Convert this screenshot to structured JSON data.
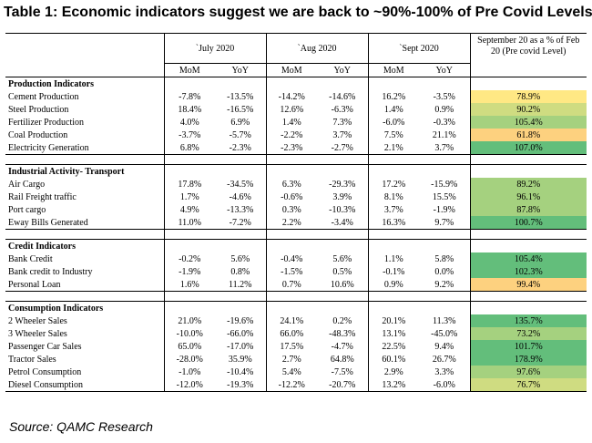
{
  "title": "Table 1: Economic indicators suggest we are back to ~90%-100% of Pre Covid Levels",
  "source": "Source: QAMC Research",
  "header": {
    "periods": [
      "`July 2020",
      "`Aug 2020",
      "`Sept 2020"
    ],
    "sub": [
      "MoM",
      "YoY"
    ],
    "last_col": "September 20 as a % of Feb 20 (Pre covid Level)"
  },
  "colors": {
    "green": "#63be7b",
    "light_green": "#a5d17f",
    "yellow_green": "#cfdc81",
    "yellow": "#ffe884",
    "orange": "#fdd17f"
  },
  "sections": [
    {
      "name": "Production Indicators",
      "rows": [
        {
          "label": "Cement Production",
          "values": [
            "-7.8%",
            "-13.5%",
            "-14.2%",
            "-14.6%",
            "16.2%",
            "-3.5%"
          ],
          "pct": "78.9%",
          "color": "#ffe884"
        },
        {
          "label": "Steel Production",
          "values": [
            "18.4%",
            "-16.5%",
            "12.6%",
            "-6.3%",
            "1.4%",
            "0.9%"
          ],
          "pct": "90.2%",
          "color": "#cfdc81"
        },
        {
          "label": "Fertilizer Production",
          "values": [
            "4.0%",
            "6.9%",
            "1.4%",
            "7.3%",
            "-6.0%",
            "-0.3%"
          ],
          "pct": "105.4%",
          "color": "#a5d17f"
        },
        {
          "label": "Coal  Production",
          "values": [
            "-3.7%",
            "-5.7%",
            "-2.2%",
            "3.7%",
            "7.5%",
            "21.1%"
          ],
          "pct": "61.8%",
          "color": "#fdd17f"
        },
        {
          "label": "Electricity Generation",
          "values": [
            "6.8%",
            "-2.3%",
            "-2.3%",
            "-2.7%",
            "2.1%",
            "3.7%"
          ],
          "pct": "107.0%",
          "color": "#63be7b"
        }
      ]
    },
    {
      "name": "Industrial Activity- Transport",
      "rows": [
        {
          "label": "Air Cargo",
          "values": [
            "17.8%",
            "-34.5%",
            "6.3%",
            "-29.3%",
            "17.2%",
            "-15.9%"
          ],
          "pct": "89.2%",
          "color": "#a5d17f"
        },
        {
          "label": "Rail Freight traffic",
          "values": [
            "1.7%",
            "-4.6%",
            "-0.6%",
            "3.9%",
            "8.1%",
            "15.5%"
          ],
          "pct": "96.1%",
          "color": "#a5d17f"
        },
        {
          "label": "Port cargo",
          "values": [
            "4.9%",
            "-13.3%",
            "0.3%",
            "-10.3%",
            "3.7%",
            "-1.9%"
          ],
          "pct": "87.8%",
          "color": "#a5d17f"
        },
        {
          "label": "Eway Bills Generated",
          "values": [
            "11.0%",
            "-7.2%",
            "2.2%",
            "-3.4%",
            "16.3%",
            "9.7%"
          ],
          "pct": "100.7%",
          "color": "#63be7b"
        }
      ]
    },
    {
      "name": "Credit Indicators",
      "rows": [
        {
          "label": "Bank Credit",
          "values": [
            "-0.2%",
            "5.6%",
            "-0.4%",
            "5.6%",
            "1.1%",
            "5.8%"
          ],
          "pct": "105.4%",
          "color": "#63be7b"
        },
        {
          "label": "Bank credit to Industry",
          "values": [
            "-1.9%",
            "0.8%",
            "-1.5%",
            "0.5%",
            "-0.1%",
            "0.0%"
          ],
          "pct": "102.3%",
          "color": "#63be7b"
        },
        {
          "label": "Personal Loan",
          "values": [
            "1.6%",
            "11.2%",
            "0.7%",
            "10.6%",
            "0.9%",
            "9.2%"
          ],
          "pct": "99.4%",
          "color": "#fdd17f"
        }
      ]
    },
    {
      "name": "Consumption Indicators",
      "rows": [
        {
          "label": "2 Wheeler Sales",
          "values": [
            "21.0%",
            "-19.6%",
            "24.1%",
            "0.2%",
            "20.1%",
            "11.3%"
          ],
          "pct": "135.7%",
          "color": "#63be7b"
        },
        {
          "label": "3 Wheeler Sales",
          "values": [
            "-10.0%",
            "-66.0%",
            "66.0%",
            "-48.3%",
            "13.1%",
            "-45.0%"
          ],
          "pct": "73.2%",
          "color": "#a5d17f"
        },
        {
          "label": "Passenger Car Sales",
          "values": [
            "65.0%",
            "-17.0%",
            "17.5%",
            "-4.7%",
            "22.5%",
            "9.4%"
          ],
          "pct": "101.7%",
          "color": "#63be7b"
        },
        {
          "label": "Tractor Sales",
          "values": [
            "-28.0%",
            "35.9%",
            "2.7%",
            "64.8%",
            "60.1%",
            "26.7%"
          ],
          "pct": "178.9%",
          "color": "#63be7b"
        },
        {
          "label": "Petrol Consumption",
          "values": [
            "-1.0%",
            "-10.4%",
            "5.4%",
            "-7.5%",
            "2.9%",
            "3.3%"
          ],
          "pct": "97.6%",
          "color": "#a5d17f"
        },
        {
          "label": "Diesel Consumption",
          "values": [
            "-12.0%",
            "-19.3%",
            "-12.2%",
            "-20.7%",
            "13.2%",
            "-6.0%"
          ],
          "pct": "76.7%",
          "color": "#cfdc81"
        }
      ]
    }
  ]
}
